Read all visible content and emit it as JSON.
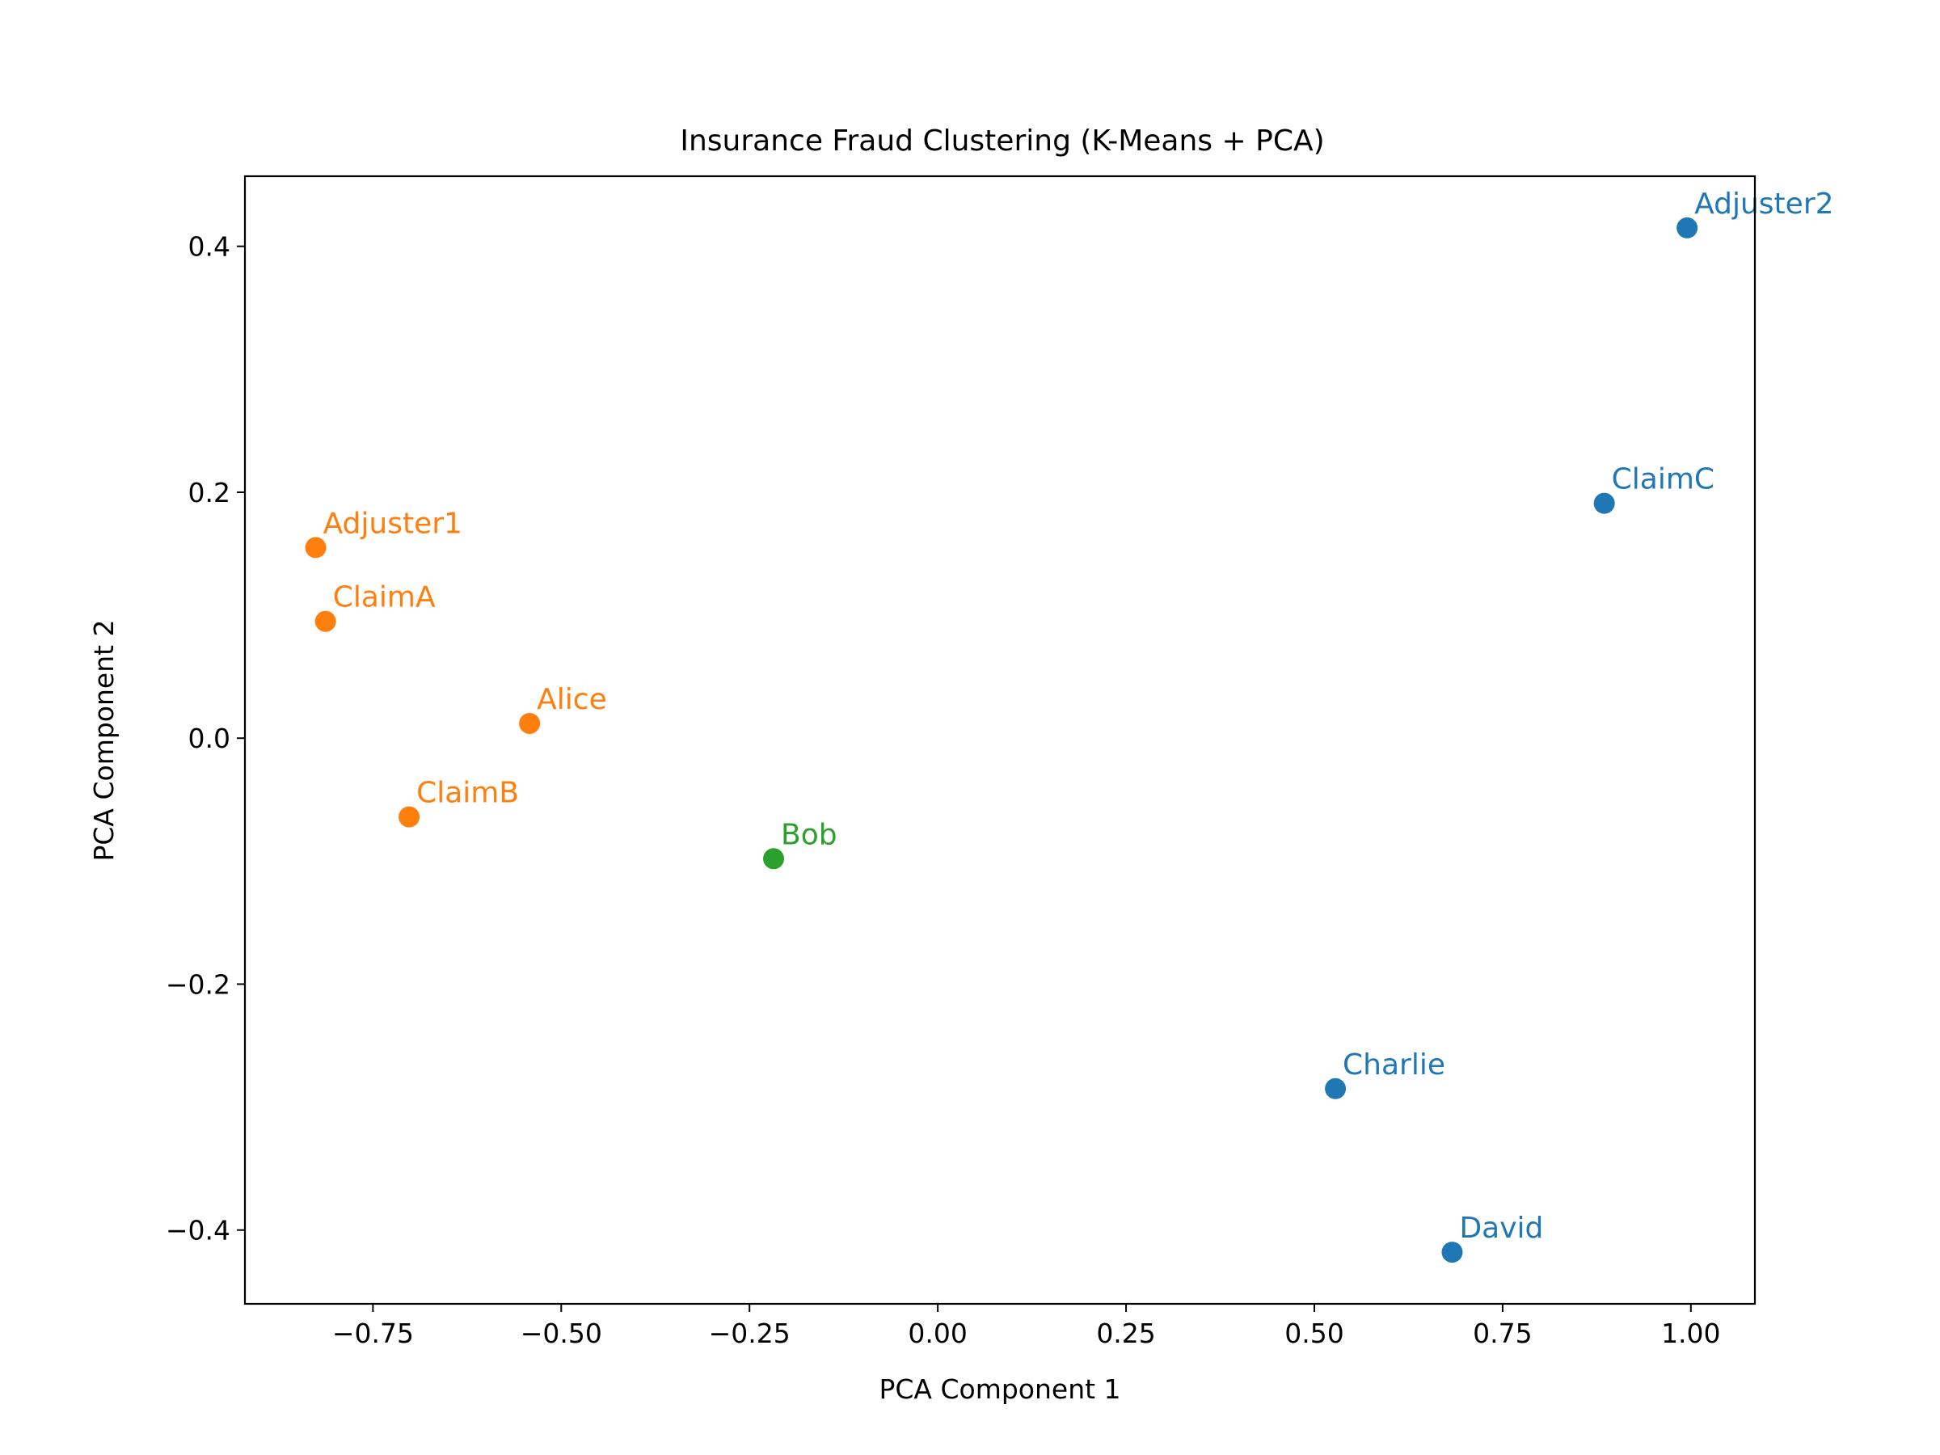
{
  "chart_data": {
    "type": "scatter",
    "title": "Insurance Fraud Clustering (K-Means + PCA)",
    "xlabel": "PCA Component 1",
    "ylabel": "PCA Component 2",
    "xlim": [
      -0.92,
      1.085
    ],
    "ylim": [
      -0.46,
      0.457
    ],
    "xticks": [
      -0.75,
      -0.5,
      -0.25,
      0.0,
      0.25,
      0.5,
      0.75,
      1.0
    ],
    "xtick_labels": [
      "−0.75",
      "−0.50",
      "−0.25",
      "0.00",
      "0.25",
      "0.50",
      "0.75",
      "1.00"
    ],
    "yticks": [
      -0.4,
      -0.2,
      0.0,
      0.2,
      0.4
    ],
    "ytick_labels": [
      "−0.4",
      "−0.2",
      "0.0",
      "0.2",
      "0.4"
    ],
    "grid": false,
    "colors": {
      "cluster0": "#1f77b4",
      "cluster1": "#ff7f0e",
      "cluster2": "#2ca02c"
    },
    "points": [
      {
        "label": "Adjuster2",
        "x": 0.995,
        "y": 0.415,
        "cluster": 0
      },
      {
        "label": "ClaimC",
        "x": 0.885,
        "y": 0.191,
        "cluster": 0
      },
      {
        "label": "Charlie",
        "x": 0.528,
        "y": -0.285,
        "cluster": 0
      },
      {
        "label": "David",
        "x": 0.683,
        "y": -0.418,
        "cluster": 0
      },
      {
        "label": "Adjuster1",
        "x": -0.826,
        "y": 0.155,
        "cluster": 1
      },
      {
        "label": "ClaimA",
        "x": -0.813,
        "y": 0.095,
        "cluster": 1
      },
      {
        "label": "Alice",
        "x": -0.542,
        "y": 0.012,
        "cluster": 1
      },
      {
        "label": "ClaimB",
        "x": -0.702,
        "y": -0.064,
        "cluster": 1
      },
      {
        "label": "Bob",
        "x": -0.218,
        "y": -0.098,
        "cluster": 2
      }
    ]
  }
}
